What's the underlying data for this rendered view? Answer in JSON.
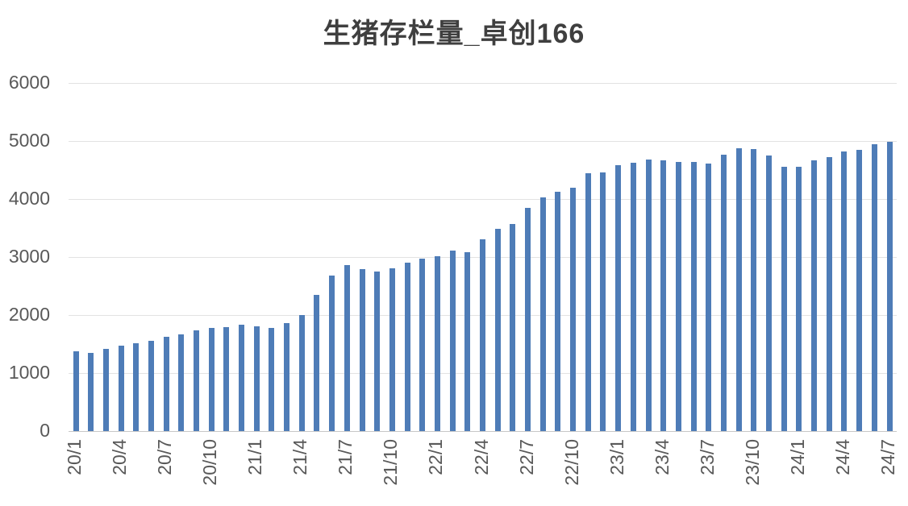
{
  "title": "生猪存栏量_卓创166",
  "chart_data": {
    "type": "bar",
    "title": "生猪存栏量_卓创166",
    "x": [
      "20/1",
      "20/2",
      "20/3",
      "20/4",
      "20/5",
      "20/6",
      "20/7",
      "20/8",
      "20/9",
      "20/10",
      "20/11",
      "20/12",
      "21/1",
      "21/2",
      "21/3",
      "21/4",
      "21/5",
      "21/6",
      "21/7",
      "21/8",
      "21/9",
      "21/10",
      "21/11",
      "21/12",
      "22/1",
      "22/2",
      "22/3",
      "22/4",
      "22/5",
      "22/6",
      "22/7",
      "22/8",
      "22/9",
      "22/10",
      "22/11",
      "22/12",
      "23/1",
      "23/2",
      "23/3",
      "23/4",
      "23/5",
      "23/6",
      "23/7",
      "23/8",
      "23/9",
      "23/10",
      "23/11",
      "23/12",
      "24/1",
      "24/2",
      "24/3",
      "24/4",
      "24/5",
      "24/6",
      "24/7"
    ],
    "values": [
      1380,
      1350,
      1420,
      1475,
      1510,
      1550,
      1625,
      1665,
      1740,
      1780,
      1795,
      1835,
      1800,
      1775,
      1860,
      1995,
      2350,
      2685,
      2860,
      2795,
      2750,
      2810,
      2900,
      2970,
      3015,
      3115,
      3090,
      3300,
      3485,
      3565,
      3845,
      4030,
      4125,
      4195,
      4450,
      4460,
      4590,
      4630,
      4675,
      4660,
      4635,
      4640,
      4615,
      4770,
      4875,
      4865,
      4745,
      4560,
      4555,
      4665,
      4720,
      4815,
      4850,
      4945,
      4990
    ],
    "xtick_labels_shown": [
      "20/1",
      "20/4",
      "20/7",
      "20/10",
      "21/1",
      "21/4",
      "21/7",
      "21/10",
      "22/1",
      "22/4",
      "22/7",
      "22/10",
      "23/1",
      "23/4",
      "23/7",
      "23/10",
      "24/1",
      "24/4",
      "24/7"
    ],
    "xtick_every": 3,
    "yticks": [
      0,
      1000,
      2000,
      3000,
      4000,
      5000,
      6000
    ],
    "ylim": [
      0,
      6000
    ],
    "xlabel": "",
    "ylabel": "",
    "grid": "horizontal",
    "legend": "none",
    "bar_color": "#4e7cb7",
    "gridline_color": "#e2e2e2",
    "axis_line_color": "#c8c8c8",
    "tick_label_color": "#595959",
    "title_color": "#3f3f3f"
  }
}
